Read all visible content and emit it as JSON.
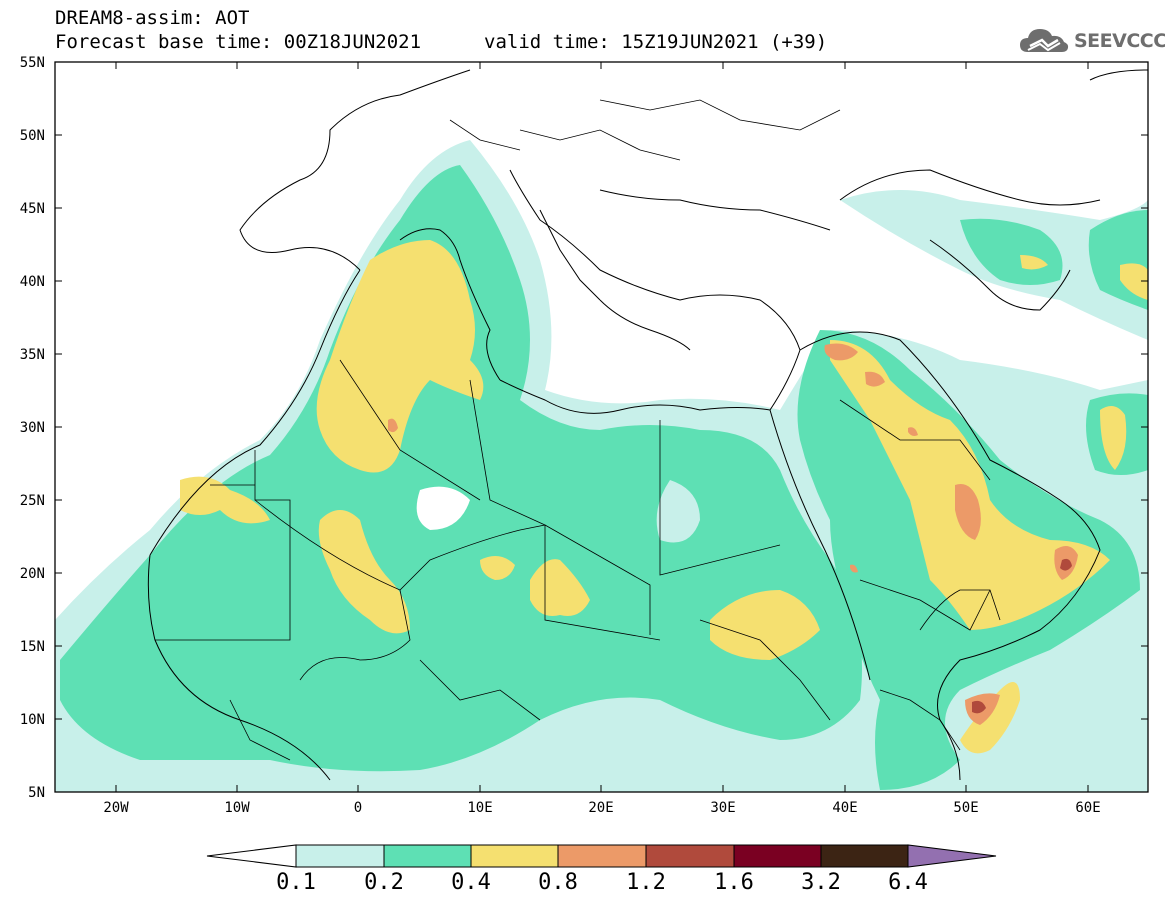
{
  "header": {
    "title": "DREAM8-assim: AOT",
    "base_time": "Forecast base time: 00Z18JUN2021",
    "valid_time": "valid time: 15Z19JUN2021 (+39)"
  },
  "logo": {
    "text": "SEEVCCC",
    "icon": "cloud-icon"
  },
  "map": {
    "lat_labels": [
      "55N",
      "50N",
      "45N",
      "40N",
      "35N",
      "30N",
      "25N",
      "20N",
      "15N",
      "10N",
      "5N"
    ],
    "lon_labels": [
      "20W",
      "10W",
      "0",
      "10E",
      "20E",
      "30E",
      "40E",
      "50E",
      "60E"
    ]
  },
  "colorbar": {
    "labels": [
      "0.1",
      "0.2",
      "0.4",
      "0.8",
      "1.2",
      "1.6",
      "3.2",
      "6.4"
    ],
    "colors": [
      "#ffffff",
      "#c8f0ea",
      "#5ee0b4",
      "#f5e070",
      "#ec9a68",
      "#b04a3c",
      "#7a0022",
      "#3c2414",
      "#9370b0"
    ]
  }
}
